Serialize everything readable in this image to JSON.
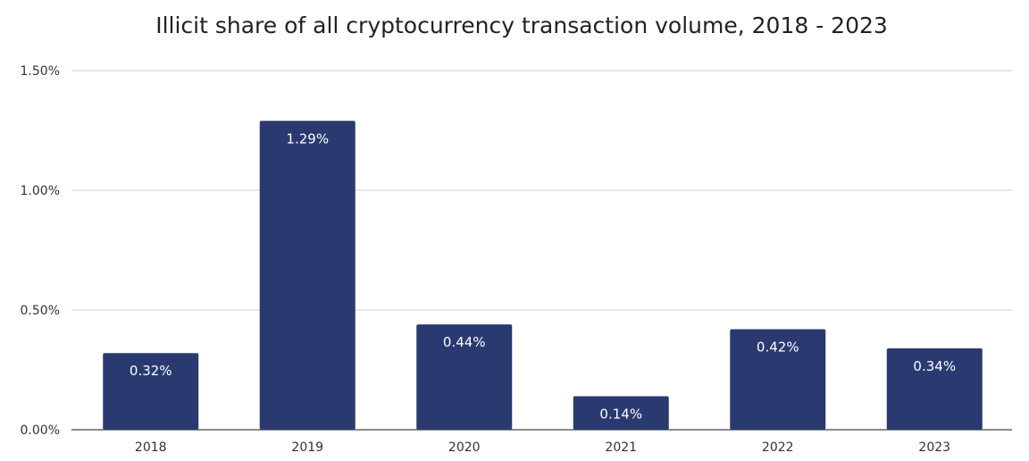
{
  "chart_data": {
    "type": "bar",
    "title": "Illicit share of all cryptocurrency transaction volume, 2018 - 2023",
    "categories": [
      "2018",
      "2019",
      "2020",
      "2021",
      "2022",
      "2023"
    ],
    "values": [
      0.32,
      1.29,
      0.44,
      0.14,
      0.42,
      0.34
    ],
    "data_labels": [
      "0.32%",
      "1.29%",
      "0.44%",
      "0.14%",
      "0.42%",
      "0.34%"
    ],
    "xlabel": "",
    "ylabel": "",
    "ylim": [
      0,
      1.5
    ],
    "yticks": [
      0,
      0.5,
      1.0,
      1.5
    ],
    "ytick_labels": [
      "0.00%",
      "0.50%",
      "1.00%",
      "1.50%"
    ],
    "grid": true,
    "bar_color": "#2a3a70"
  }
}
